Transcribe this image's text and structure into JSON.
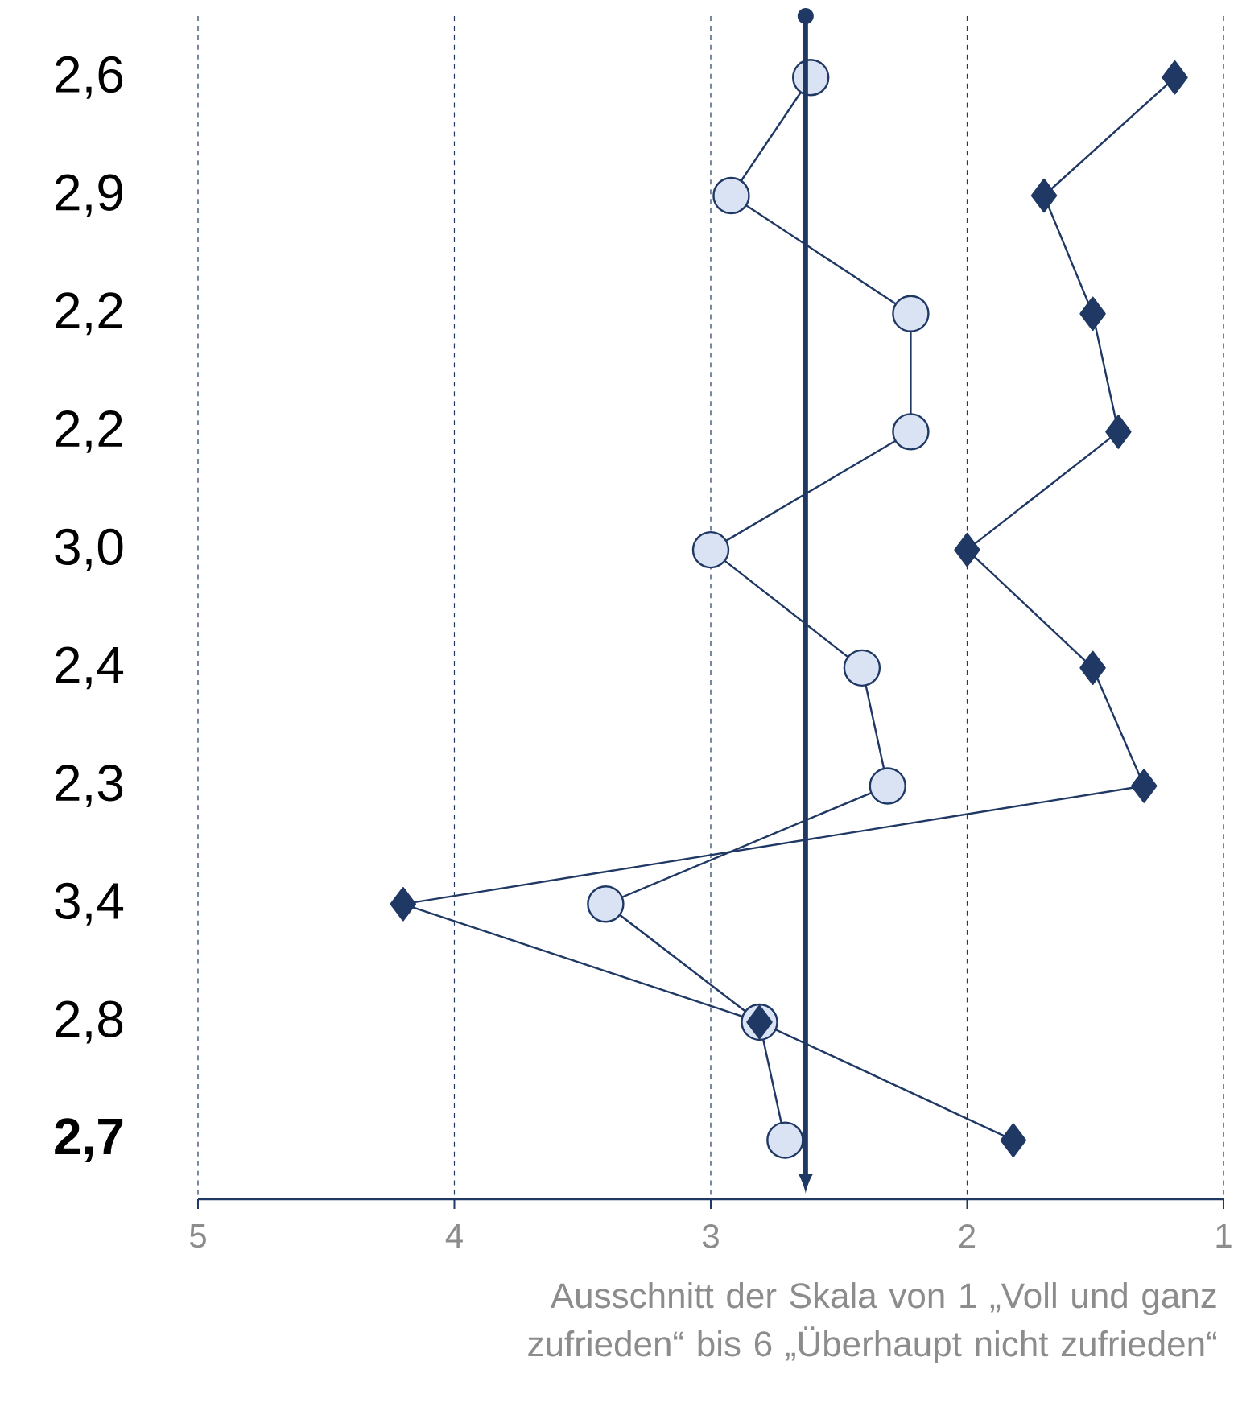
{
  "chart_data": {
    "type": "line",
    "orientation": "horizontal",
    "categories": [
      "2,6",
      "2,9",
      "2,2",
      "2,2",
      "3,0",
      "2,4",
      "2,3",
      "3,4",
      "2,8",
      "**2,7**"
    ],
    "xlim": [
      5,
      1
    ],
    "xticks": [
      5,
      4,
      3,
      2,
      1
    ],
    "grid": "x",
    "xlabel": "Ausschnitt der Skala von 1 „Voll und ganz zufrieden“ bis 6 „Überhaupt nicht zufrieden“",
    "series": [
      {
        "color": "#dae3f3",
        "marker": "circle",
        "values": [
          2.61,
          2.92,
          2.22,
          2.22,
          3.0,
          2.41,
          2.31,
          3.41,
          2.81,
          2.71
        ]
      },
      {
        "color": "#1f3864",
        "marker": "diamond",
        "values": [
          1.19,
          1.7,
          1.51,
          1.41,
          2.0,
          1.51,
          1.31,
          4.2,
          2.81,
          1.82
        ]
      }
    ],
    "ref_lines": [
      {
        "axis": "x",
        "value": 2.63,
        "color": "#1f3864"
      }
    ]
  }
}
